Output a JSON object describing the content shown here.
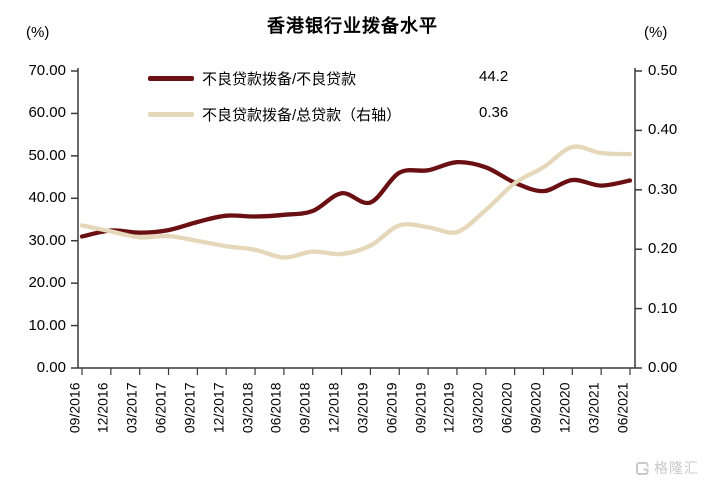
{
  "title": "香港银行业拨备水平",
  "left_axis_unit": "(%)",
  "right_axis_unit": "(%)",
  "legend": [
    {
      "label": "不良贷款拨备/不良贷款",
      "value": "44.2",
      "color": "#6a1013"
    },
    {
      "label": "不良贷款拨备/总贷款（右轴）",
      "value": "0.36",
      "color": "#e5d7ba"
    }
  ],
  "watermark_text": "格隆汇",
  "colors": {
    "series1": "#6a1013",
    "series2": "#e5d7ba",
    "axis": "#3a3a3a",
    "watermark": "#c9c9c9"
  },
  "chart_data": {
    "type": "line",
    "title": "香港银行业拨备水平",
    "grid": false,
    "legend_position": "top",
    "categories": [
      "09/2016",
      "12/2016",
      "03/2017",
      "06/2017",
      "09/2017",
      "12/2017",
      "03/2018",
      "06/2018",
      "09/2018",
      "12/2018",
      "03/2019",
      "06/2019",
      "09/2019",
      "12/2019",
      "03/2020",
      "06/2020",
      "09/2020",
      "12/2020",
      "03/2021",
      "06/2021"
    ],
    "series": [
      {
        "name": "不良贷款拨备/不良贷款",
        "axis": "left",
        "color": "#6a1013",
        "last_value_label": "44.2",
        "values": [
          31.0,
          32.4,
          31.9,
          32.5,
          34.4,
          35.9,
          35.7,
          36.1,
          37.0,
          41.2,
          39.0,
          46.0,
          46.6,
          48.5,
          47.3,
          43.7,
          41.7,
          44.3,
          43.0,
          44.2
        ]
      },
      {
        "name": "不良贷款拨备/总贷款（右轴）",
        "axis": "right",
        "color": "#e5d7ba",
        "last_value_label": "0.36",
        "values": [
          0.24,
          0.23,
          0.22,
          0.222,
          0.214,
          0.205,
          0.199,
          0.186,
          0.196,
          0.192,
          0.206,
          0.24,
          0.237,
          0.229,
          0.266,
          0.311,
          0.338,
          0.372,
          0.362,
          0.36
        ]
      }
    ],
    "left_axis": {
      "min": 0,
      "max": 70,
      "tick_labels": [
        "70.00",
        "60.00",
        "50.00",
        "40.00",
        "30.00",
        "20.00",
        "10.00",
        "0.00"
      ]
    },
    "right_axis": {
      "min": 0,
      "max": 0.5,
      "tick_labels": [
        "0.50",
        "0.40",
        "0.30",
        "0.20",
        "0.10",
        "0.00"
      ]
    }
  }
}
